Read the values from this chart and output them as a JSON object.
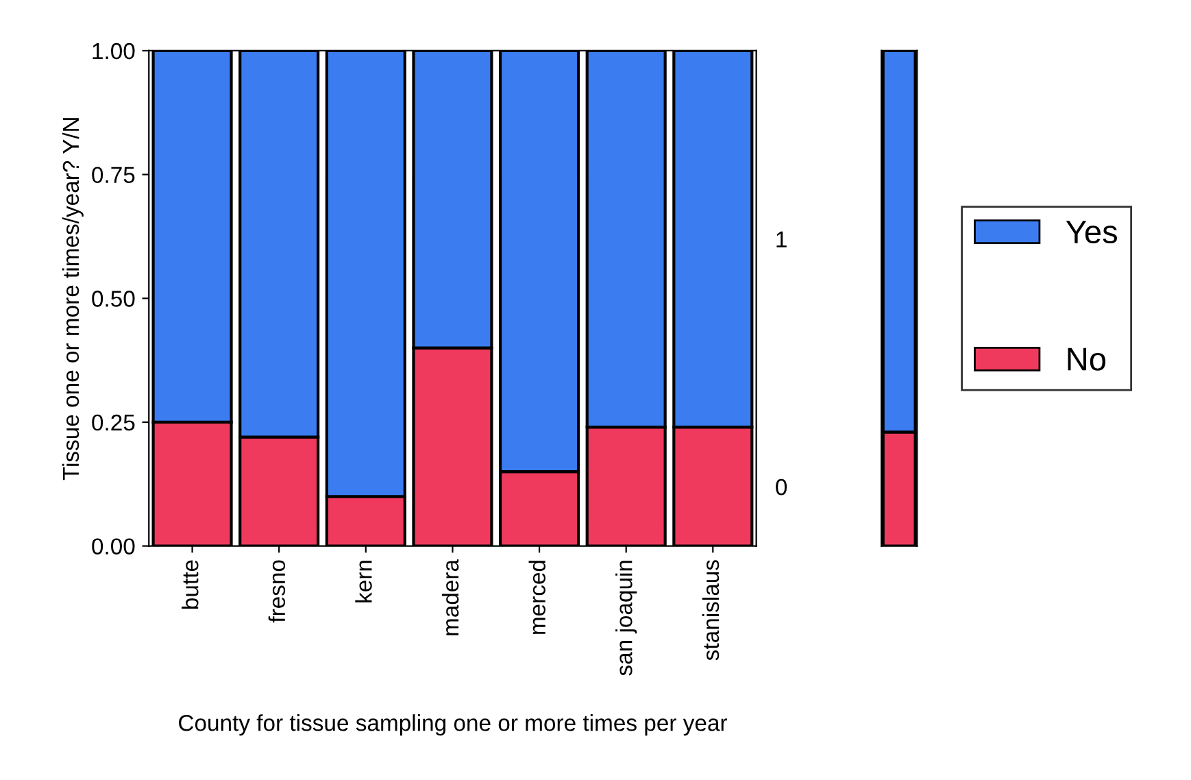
{
  "chart_data": [
    {
      "type": "bar",
      "stacked": true,
      "xlabel": "County for tissue sampling one or more times per year",
      "ylabel": "Tissue one or more times/year? Y/N",
      "categories": [
        "butte",
        "fresno",
        "kern",
        "madera",
        "merced",
        "san joaquin",
        "stanislaus"
      ],
      "series": [
        {
          "color": "#ef3a5d",
          "values": [
            0.25,
            0.22,
            0.1,
            0.4,
            0.15,
            0.24,
            0.24
          ]
        },
        {
          "color": "#3b7cf0",
          "values": [
            0.75,
            0.78,
            0.9,
            0.6,
            0.85,
            0.76,
            0.76
          ]
        }
      ],
      "ylim": [
        0,
        1
      ],
      "yticks": [
        {
          "value": 0,
          "label": "0.00"
        },
        {
          "value": 0.25,
          "label": "0.25"
        },
        {
          "value": 0.5,
          "label": "0.50"
        },
        {
          "value": 0.75,
          "label": "0.75"
        },
        {
          "value": 1,
          "label": "1.00"
        }
      ],
      "grid": false,
      "legend": false
    },
    {
      "type": "bar",
      "stacked": true,
      "categories": [
        null
      ],
      "series": [
        {
          "name": "No",
          "color": "#ef3a5d",
          "values": [
            0.23
          ]
        },
        {
          "name": "Yes",
          "color": "#3b7cf0",
          "values": [
            0.77
          ]
        }
      ],
      "ylim": [
        0,
        1
      ],
      "tick_labels": false,
      "legend": "right",
      "annotations": [
        "1",
        "0"
      ]
    }
  ]
}
